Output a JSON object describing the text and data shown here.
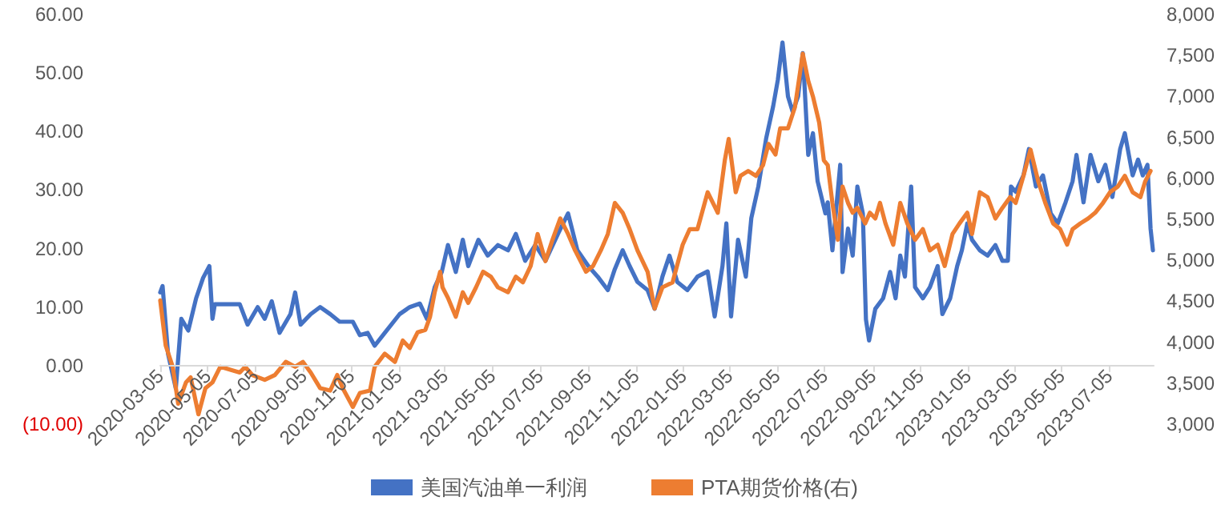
{
  "chart_data": {
    "type": "line",
    "xlim": [
      "2020-03-05",
      "2023-08-31"
    ],
    "xticks": [
      "2020-03-05",
      "2020-05-05",
      "2020-07-05",
      "2020-09-05",
      "2020-11-05",
      "2021-01-05",
      "2021-03-05",
      "2021-05-05",
      "2021-07-05",
      "2021-09-05",
      "2021-11-05",
      "2022-01-05",
      "2022-03-05",
      "2022-05-05",
      "2022-07-05",
      "2022-09-05",
      "2022-11-05",
      "2023-01-05",
      "2023-03-05",
      "2023-05-05",
      "2023-07-05"
    ],
    "ylim": [
      -10,
      60
    ],
    "yticks": [
      {
        "value": -10,
        "label": "(10.00)"
      },
      {
        "value": 0,
        "label": "0.00"
      },
      {
        "value": 10,
        "label": "10.00"
      },
      {
        "value": 20,
        "label": "20.00"
      },
      {
        "value": 30,
        "label": "30.00"
      },
      {
        "value": 40,
        "label": "40.00"
      },
      {
        "value": 50,
        "label": "50.00"
      },
      {
        "value": 60,
        "label": "60.00"
      }
    ],
    "y2lim": [
      3000,
      8000
    ],
    "y2ticks": [
      {
        "value": 3000,
        "label": "3,000"
      },
      {
        "value": 3500,
        "label": "3,500"
      },
      {
        "value": 4000,
        "label": "4,000"
      },
      {
        "value": 4500,
        "label": "4,500"
      },
      {
        "value": 5000,
        "label": "5,000"
      },
      {
        "value": 5500,
        "label": "5,500"
      },
      {
        "value": 6000,
        "label": "6,000"
      },
      {
        "value": 6500,
        "label": "6,500"
      },
      {
        "value": 7000,
        "label": "7,000"
      },
      {
        "value": 7500,
        "label": "7,500"
      },
      {
        "value": 8000,
        "label": "8,000"
      }
    ],
    "legend": "bottom",
    "series": [
      {
        "name": "美国汽油单一利润",
        "color": "#4472c4",
        "x": [
          "2020-03-05",
          "2020-03-08",
          "2020-03-15",
          "2020-03-25",
          "2020-04-01",
          "2020-04-10",
          "2020-04-20",
          "2020-04-29",
          "2020-05-07",
          "2020-05-11",
          "2020-05-14",
          "2020-06-15",
          "2020-06-25",
          "2020-07-08",
          "2020-07-17",
          "2020-07-26",
          "2020-08-05",
          "2020-08-19",
          "2020-08-25",
          "2020-09-01",
          "2020-09-14",
          "2020-09-26",
          "2020-10-09",
          "2020-10-21",
          "2020-11-07",
          "2020-11-16",
          "2020-11-26",
          "2020-12-05",
          "2020-12-18",
          "2021-01-06",
          "2021-01-19",
          "2021-02-01",
          "2021-02-10",
          "2021-02-20",
          "2021-03-01",
          "2021-03-09",
          "2021-03-19",
          "2021-03-28",
          "2021-04-04",
          "2021-04-17",
          "2021-04-29",
          "2021-05-12",
          "2021-05-25",
          "2021-06-04",
          "2021-06-16",
          "2021-06-29",
          "2021-07-12",
          "2021-07-28",
          "2021-08-10",
          "2021-08-22",
          "2021-09-05",
          "2021-09-17",
          "2021-09-30",
          "2021-10-09",
          "2021-10-19",
          "2021-10-28",
          "2021-11-07",
          "2021-11-20",
          "2021-11-29",
          "2021-12-09",
          "2021-12-18",
          "2021-12-28",
          "2022-01-10",
          "2022-01-23",
          "2022-02-05",
          "2022-02-14",
          "2022-02-24",
          "2022-03-01",
          "2022-03-07",
          "2022-03-16",
          "2022-03-26",
          "2022-04-02",
          "2022-04-11",
          "2022-04-21",
          "2022-04-30",
          "2022-05-06",
          "2022-05-12",
          "2022-05-19",
          "2022-05-25",
          "2022-06-01",
          "2022-06-07",
          "2022-06-14",
          "2022-06-20",
          "2022-06-26",
          "2022-07-06",
          "2022-07-09",
          "2022-07-15",
          "2022-07-25",
          "2022-07-28",
          "2022-08-04",
          "2022-08-10",
          "2022-08-16",
          "2022-08-23",
          "2022-08-27",
          "2022-08-31",
          "2022-09-08",
          "2022-09-18",
          "2022-09-27",
          "2022-10-04",
          "2022-10-10",
          "2022-10-16",
          "2022-10-24",
          "2022-10-29",
          "2022-11-08",
          "2022-11-17",
          "2022-11-27",
          "2022-12-03",
          "2022-12-13",
          "2022-12-22",
          "2022-12-28",
          "2023-01-04",
          "2023-01-10",
          "2023-01-20",
          "2023-01-30",
          "2023-02-09",
          "2023-02-18",
          "2023-02-25",
          "2023-03-01",
          "2023-03-07",
          "2023-03-17",
          "2023-03-24",
          "2023-04-02",
          "2023-04-11",
          "2023-04-21",
          "2023-04-30",
          "2023-05-10",
          "2023-05-19",
          "2023-05-24",
          "2023-06-02",
          "2023-06-11",
          "2023-06-21",
          "2023-06-30",
          "2023-07-09",
          "2023-07-19",
          "2023-07-25",
          "2023-08-04",
          "2023-08-11",
          "2023-08-17",
          "2023-08-23",
          "2023-08-27",
          "2023-08-30"
        ],
        "values": [
          12.5,
          13.6,
          2,
          -3.9,
          8,
          6,
          11.5,
          15,
          17,
          8,
          10.5,
          10.5,
          7,
          10,
          8,
          11,
          5.6,
          8.8,
          12.5,
          7,
          8.8,
          10,
          8.8,
          7.5,
          7.5,
          5.2,
          5.6,
          3.4,
          5.6,
          8.8,
          10,
          10.6,
          8,
          13.4,
          16,
          20.6,
          16,
          21.5,
          17,
          21.5,
          18.8,
          20.6,
          19.7,
          22.5,
          17.9,
          20.6,
          17.9,
          22.5,
          26,
          19.7,
          17,
          15.2,
          12.9,
          16.5,
          19.7,
          17,
          14.3,
          12.9,
          9.7,
          15.2,
          18.8,
          14.3,
          12.9,
          15.2,
          16.1,
          8.4,
          17,
          24.3,
          8.4,
          21.5,
          15.2,
          25.2,
          30.6,
          38.8,
          44.3,
          48.8,
          55.2,
          46,
          43.4,
          46,
          53.4,
          36,
          39.7,
          31.5,
          26,
          27.9,
          19.7,
          34.3,
          16,
          23.4,
          18.8,
          30.6,
          26,
          7.9,
          4.3,
          9.7,
          11.5,
          16,
          11.5,
          18.8,
          15.2,
          30.6,
          13.4,
          11.5,
          13.4,
          17,
          8.8,
          11.5,
          17,
          19.7,
          24.3,
          21.5,
          19.7,
          18.8,
          20.6,
          17.9,
          17.9,
          30.6,
          29.7,
          32.5,
          37,
          30.6,
          32.5,
          26,
          24.3,
          27.9,
          31.5,
          36,
          27.9,
          36,
          31.5,
          34.3,
          28.8,
          37,
          39.7,
          32.5,
          35.2,
          32.5,
          34.3,
          23.4,
          19.7
        ]
      },
      {
        "name": "PTA期货价格(右)",
        "color": "#ed7d31",
        "axis": "y2",
        "x": [
          "2020-03-05",
          "2020-03-12",
          "2020-03-21",
          "2020-03-28",
          "2020-04-07",
          "2020-04-13",
          "2020-04-23",
          "2020-05-02",
          "2020-05-11",
          "2020-05-21",
          "2020-06-15",
          "2020-06-22",
          "2020-07-01",
          "2020-07-17",
          "2020-07-30",
          "2020-08-13",
          "2020-08-25",
          "2020-09-04",
          "2020-09-14",
          "2020-09-26",
          "2020-10-09",
          "2020-10-18",
          "2020-10-25",
          "2020-11-07",
          "2020-11-16",
          "2020-11-29",
          "2020-12-05",
          "2020-12-18",
          "2020-12-31",
          "2021-01-10",
          "2021-01-19",
          "2021-01-29",
          "2021-02-08",
          "2021-02-14",
          "2021-02-20",
          "2021-02-27",
          "2021-03-02",
          "2021-03-09",
          "2021-03-19",
          "2021-03-28",
          "2021-04-04",
          "2021-04-14",
          "2021-04-23",
          "2021-05-03",
          "2021-05-12",
          "2021-05-25",
          "2021-06-04",
          "2021-06-13",
          "2021-06-23",
          "2021-07-02",
          "2021-07-12",
          "2021-07-21",
          "2021-07-31",
          "2021-08-10",
          "2021-08-19",
          "2021-09-02",
          "2021-09-11",
          "2021-09-21",
          "2021-09-30",
          "2021-10-09",
          "2021-10-19",
          "2021-10-28",
          "2021-11-07",
          "2021-11-20",
          "2021-11-29",
          "2021-12-09",
          "2021-12-22",
          "2022-01-04",
          "2022-01-13",
          "2022-01-23",
          "2022-02-05",
          "2022-02-18",
          "2022-02-27",
          "2022-03-04",
          "2022-03-13",
          "2022-03-19",
          "2022-03-29",
          "2022-04-08",
          "2022-04-17",
          "2022-04-24",
          "2022-05-03",
          "2022-05-09",
          "2022-05-19",
          "2022-05-28",
          "2022-06-07",
          "2022-06-14",
          "2022-06-20",
          "2022-06-28",
          "2022-07-04",
          "2022-07-09",
          "2022-07-15",
          "2022-07-22",
          "2022-07-28",
          "2022-08-04",
          "2022-08-10",
          "2022-08-16",
          "2022-08-26",
          "2022-09-01",
          "2022-09-08",
          "2022-09-14",
          "2022-09-21",
          "2022-10-01",
          "2022-10-10",
          "2022-10-19",
          "2022-10-29",
          "2022-11-08",
          "2022-11-17",
          "2022-11-27",
          "2022-12-06",
          "2022-12-16",
          "2022-12-25",
          "2023-01-04",
          "2023-01-10",
          "2023-01-20",
          "2023-01-30",
          "2023-02-09",
          "2023-02-18",
          "2023-02-28",
          "2023-03-07",
          "2023-03-17",
          "2023-03-26",
          "2023-04-05",
          "2023-04-14",
          "2023-04-24",
          "2023-05-03",
          "2023-05-12",
          "2023-05-19",
          "2023-05-29",
          "2023-06-08",
          "2023-06-17",
          "2023-06-27",
          "2023-07-06",
          "2023-07-16",
          "2023-07-25",
          "2023-08-04",
          "2023-08-14",
          "2023-08-20",
          "2023-08-27"
        ],
        "values": [
          4510,
          3960,
          3700,
          3250,
          3510,
          3570,
          3120,
          3440,
          3510,
          3700,
          3630,
          3700,
          3600,
          3540,
          3600,
          3760,
          3700,
          3760,
          3630,
          3440,
          3410,
          3600,
          3440,
          3210,
          3380,
          3410,
          3700,
          3860,
          3760,
          4020,
          3930,
          4120,
          4150,
          4310,
          4610,
          4860,
          4670,
          4540,
          4310,
          4610,
          4480,
          4670,
          4860,
          4800,
          4670,
          4610,
          4800,
          4730,
          4930,
          5320,
          4990,
          5250,
          5510,
          5320,
          5120,
          4860,
          4930,
          5120,
          5320,
          5700,
          5580,
          5380,
          5120,
          4860,
          4410,
          4670,
          4730,
          5190,
          5380,
          5380,
          5830,
          5580,
          6220,
          6480,
          5830,
          6030,
          6090,
          6030,
          6160,
          6420,
          6290,
          6610,
          6610,
          6870,
          7520,
          7190,
          7000,
          6680,
          6220,
          6160,
          5700,
          5250,
          5900,
          5700,
          5580,
          5640,
          5450,
          5580,
          5510,
          5700,
          5450,
          5190,
          5700,
          5450,
          5250,
          5380,
          5120,
          5190,
          4930,
          5320,
          5450,
          5580,
          5320,
          5830,
          5770,
          5510,
          5640,
          5770,
          5700,
          6030,
          6350,
          5960,
          5700,
          5450,
          5380,
          5190,
          5380,
          5450,
          5510,
          5580,
          5700,
          5830,
          5900,
          6030,
          5830,
          5770,
          5960,
          6090
        ]
      }
    ]
  }
}
